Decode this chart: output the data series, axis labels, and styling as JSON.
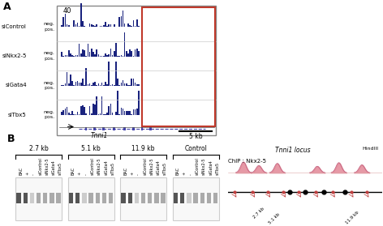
{
  "panel_A": {
    "title": "A",
    "scale": "40",
    "tracks": [
      "siControl",
      "siNkx2-5",
      "siGata4",
      "siTbx5"
    ],
    "highlight_color": "#c0392b",
    "bar_color": "#1a237e",
    "bg_color": "#f5f5f5"
  },
  "panel_B": {
    "title": "B",
    "groups": [
      "2.7 kb",
      "5.1 kb",
      "11.9 kb",
      "Control"
    ],
    "lane_labels": [
      "BAC",
      "+",
      "-",
      "siControl",
      "siNkx2-5",
      "siGata4",
      "siTbx5"
    ],
    "chip_label": "ChIP : Nkx2-5",
    "locus_label": "Tnni1 locus",
    "hindiii_label": "HindIII",
    "kb_labels": [
      "2.7 kb",
      "5.1 kb",
      "11.9 kb"
    ],
    "arrow_color": "#c04040",
    "chip_peak_color": "#c06080",
    "gel_band_color": "#aaaaaa",
    "gel_dark_color": "#555555"
  },
  "figure_bg": "#ffffff"
}
